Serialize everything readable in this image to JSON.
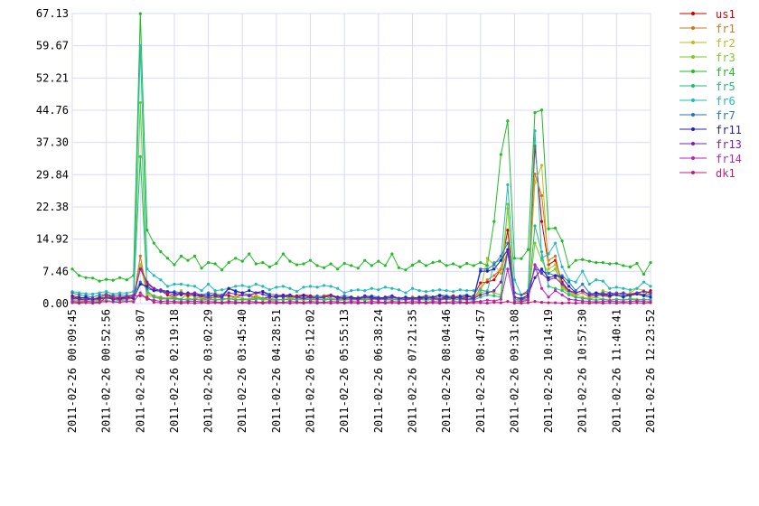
{
  "chart_data": {
    "type": "line",
    "categories": [
      "2011-02-26 00:09:45",
      null,
      null,
      null,
      null,
      "2011-02-26 00:52:56",
      null,
      null,
      null,
      null,
      "2011-02-26 01:36:07",
      null,
      null,
      null,
      null,
      "2011-02-26 02:19:18",
      null,
      null,
      null,
      null,
      "2011-02-26 03:02:29",
      null,
      null,
      null,
      null,
      "2011-02-26 03:45:40",
      null,
      null,
      null,
      null,
      "2011-02-26 04:28:51",
      null,
      null,
      null,
      null,
      "2011-02-26 05:12:02",
      null,
      null,
      null,
      null,
      "2011-02-26 05:55:13",
      null,
      null,
      null,
      null,
      "2011-02-26 06:38:24",
      null,
      null,
      null,
      null,
      "2011-02-26 07:21:35",
      null,
      null,
      null,
      null,
      "2011-02-26 08:04:46",
      null,
      null,
      null,
      null,
      "2011-02-26 08:47:57",
      null,
      null,
      null,
      null,
      "2011-02-26 09:31:08",
      null,
      null,
      null,
      null,
      "2011-02-26 10:14:19",
      null,
      null,
      null,
      null,
      "2011-02-26 10:57:30",
      null,
      null,
      null,
      null,
      "2011-02-26 11:40:41",
      null,
      null,
      null,
      null,
      "2011-02-26 12:23:52"
    ],
    "ylim": [
      0,
      67.13
    ],
    "yticks": [
      {
        "value": 0,
        "label": "0.00"
      },
      {
        "value": 7.46,
        "label": "7.46"
      },
      {
        "value": 14.92,
        "label": "14.92"
      },
      {
        "value": 22.38,
        "label": "22.38"
      },
      {
        "value": 29.84,
        "label": "29.84"
      },
      {
        "value": 37.3,
        "label": "37.30"
      },
      {
        "value": 44.76,
        "label": "44.76"
      },
      {
        "value": 52.21,
        "label": "52.21"
      },
      {
        "value": 59.67,
        "label": "59.67"
      },
      {
        "value": 67.13,
        "label": "67.13"
      }
    ],
    "grid": true,
    "legend": "right",
    "series": [
      {
        "name": "us1",
        "color": "#cc0000",
        "values": [
          1.8,
          1.5,
          1.2,
          1.0,
          1.5,
          2.0,
          1.5,
          1.3,
          1.5,
          1.8,
          9.0,
          4.5,
          3.5,
          3.0,
          2.0,
          1.5,
          2.5,
          1.8,
          2.0,
          1.5,
          1.2,
          1.5,
          2.0,
          1.8,
          1.5,
          2.0,
          1.8,
          1.5,
          1.2,
          1.5,
          1.8,
          2.0,
          1.5,
          1.8,
          2.0,
          1.8,
          1.5,
          1.8,
          2.0,
          1.5,
          1.2,
          1.5,
          1.2,
          1.0,
          1.5,
          1.2,
          1.0,
          1.5,
          1.2,
          1.0,
          1.5,
          1.2,
          1.8,
          1.5,
          1.2,
          1.5,
          1.8,
          1.2,
          1.5,
          1.8,
          4.8,
          5.0,
          5.5,
          8.0,
          17.0,
          2.5,
          2.0,
          2.5,
          36.5,
          19.0,
          9.0,
          10.0,
          5.0,
          3.0,
          2.5,
          3.0,
          2.0,
          2.5,
          2.2,
          2.0,
          2.0,
          1.8,
          2.2,
          2.5,
          2.0,
          3.0
        ]
      },
      {
        "name": "fr1",
        "color": "#cc7722",
        "values": [
          1.0,
          1.2,
          0.8,
          1.0,
          1.2,
          1.5,
          1.0,
          1.2,
          1.0,
          1.2,
          11.0,
          2.5,
          1.8,
          1.5,
          1.2,
          1.5,
          1.0,
          2.5,
          1.5,
          1.2,
          1.0,
          1.5,
          1.2,
          1.0,
          1.5,
          1.2,
          1.0,
          1.5,
          1.2,
          1.0,
          1.5,
          1.8,
          1.2,
          1.5,
          1.2,
          1.0,
          1.5,
          1.8,
          1.2,
          1.0,
          1.2,
          1.0,
          1.5,
          1.2,
          1.0,
          1.2,
          1.5,
          1.0,
          1.2,
          1.0,
          1.5,
          1.2,
          1.0,
          1.5,
          1.2,
          1.0,
          1.2,
          1.5,
          1.0,
          1.2,
          3.5,
          5.5,
          6.5,
          8.0,
          12.0,
          1.5,
          1.0,
          2.0,
          30.0,
          25.0,
          10.0,
          11.0,
          4.0,
          3.0,
          2.0,
          2.5,
          1.5,
          2.0,
          1.8,
          1.5,
          2.5,
          2.0,
          1.8,
          2.2,
          3.0,
          2.5
        ]
      },
      {
        "name": "fr2",
        "color": "#bbbb22",
        "values": [
          0.5,
          0.8,
          0.5,
          0.6,
          0.5,
          0.8,
          0.5,
          0.6,
          0.5,
          0.8,
          9.0,
          2.0,
          1.5,
          1.2,
          1.0,
          1.5,
          3.0,
          1.2,
          1.0,
          1.5,
          1.0,
          2.5,
          1.2,
          1.0,
          1.5,
          1.2,
          1.0,
          2.0,
          1.2,
          1.0,
          0.8,
          1.0,
          1.2,
          0.8,
          1.0,
          1.2,
          0.8,
          1.0,
          1.2,
          0.8,
          0.8,
          1.0,
          0.8,
          1.2,
          1.0,
          0.8,
          1.0,
          0.8,
          1.2,
          1.0,
          1.0,
          0.8,
          1.2,
          1.0,
          0.8,
          1.0,
          1.2,
          0.8,
          1.0,
          0.8,
          3.0,
          10.5,
          9.0,
          7.0,
          22.0,
          1.0,
          0.8,
          1.5,
          28.0,
          32.0,
          8.0,
          9.0,
          3.5,
          2.5,
          2.0,
          1.5,
          1.2,
          1.5,
          3.0,
          2.5,
          2.0,
          1.8,
          2.5,
          3.5,
          3.0,
          2.0
        ]
      },
      {
        "name": "fr3",
        "color": "#77cc22",
        "values": [
          0.8,
          0.5,
          0.6,
          0.5,
          0.8,
          0.6,
          0.5,
          0.8,
          0.6,
          0.5,
          46.5,
          2.0,
          1.5,
          1.0,
          1.2,
          1.0,
          0.8,
          1.2,
          1.0,
          0.8,
          0.8,
          1.0,
          0.8,
          1.2,
          1.0,
          0.8,
          1.0,
          1.2,
          0.8,
          1.0,
          1.0,
          0.8,
          1.2,
          1.0,
          0.8,
          1.0,
          0.8,
          1.2,
          1.0,
          0.8,
          0.8,
          1.0,
          0.8,
          1.0,
          0.8,
          1.2,
          1.0,
          0.8,
          1.0,
          0.8,
          1.0,
          0.8,
          1.0,
          0.8,
          1.2,
          1.0,
          0.8,
          1.0,
          0.8,
          1.0,
          2.5,
          3.0,
          2.5,
          2.0,
          23.0,
          1.0,
          0.5,
          1.0,
          14.0,
          10.0,
          7.0,
          8.0,
          4.0,
          2.5,
          1.5,
          1.2,
          1.0,
          1.5,
          1.0,
          0.8,
          1.0,
          0.8,
          1.2,
          1.0,
          0.8,
          1.0
        ]
      },
      {
        "name": "fr4",
        "color": "#22bb22",
        "values": [
          8.0,
          6.5,
          6.0,
          5.9,
          5.2,
          5.6,
          5.4,
          6.0,
          5.5,
          6.5,
          67.1,
          17.0,
          14.0,
          12.0,
          10.5,
          9.0,
          11.0,
          10.0,
          11.0,
          8.2,
          9.5,
          9.2,
          7.8,
          9.5,
          10.5,
          9.8,
          11.5,
          9.2,
          9.5,
          8.5,
          9.3,
          11.5,
          9.8,
          9.0,
          9.2,
          10.0,
          8.8,
          8.3,
          9.2,
          8.0,
          9.3,
          8.8,
          8.2,
          10.0,
          8.8,
          9.8,
          8.8,
          11.5,
          8.3,
          7.8,
          8.9,
          9.8,
          8.8,
          9.5,
          9.8,
          8.8,
          9.2,
          8.5,
          9.3,
          8.8,
          9.5,
          8.8,
          19.0,
          34.5,
          42.3,
          10.5,
          10.4,
          12.5,
          44.2,
          44.8,
          17.3,
          17.5,
          14.5,
          8.5,
          10.0,
          10.2,
          9.8,
          9.5,
          9.5,
          9.2,
          9.3,
          8.8,
          8.5,
          9.3,
          6.8,
          9.5
        ]
      },
      {
        "name": "fr5",
        "color": "#22bb77",
        "values": [
          1.0,
          1.2,
          1.0,
          0.8,
          1.0,
          1.2,
          1.0,
          0.9,
          1.1,
          1.5,
          34.0,
          3.0,
          1.5,
          1.2,
          1.0,
          1.2,
          1.0,
          0.8,
          1.0,
          0.8,
          1.0,
          0.8,
          1.0,
          1.2,
          0.8,
          1.0,
          0.8,
          1.0,
          1.2,
          0.8,
          0.8,
          1.0,
          0.8,
          1.0,
          1.2,
          0.8,
          1.0,
          0.8,
          1.0,
          0.8,
          1.0,
          0.8,
          1.0,
          0.8,
          1.0,
          1.2,
          0.8,
          1.0,
          0.8,
          1.0,
          0.8,
          1.0,
          0.8,
          1.0,
          0.8,
          1.0,
          1.2,
          0.8,
          1.0,
          0.8,
          1.5,
          2.0,
          1.8,
          1.5,
          12.0,
          1.0,
          0.8,
          1.0,
          18.0,
          12.0,
          4.0,
          3.5,
          3.0,
          2.0,
          1.5,
          1.2,
          1.0,
          0.8,
          1.0,
          0.8,
          1.0,
          0.8,
          1.0,
          0.8,
          1.0,
          0.8
        ]
      },
      {
        "name": "fr6",
        "color": "#22bbbb",
        "values": [
          2.8,
          2.5,
          2.3,
          2.2,
          2.5,
          2.8,
          2.2,
          2.5,
          2.4,
          2.8,
          59.7,
          8.0,
          6.5,
          5.5,
          4.0,
          4.5,
          4.5,
          4.2,
          4.0,
          3.0,
          4.5,
          3.0,
          3.2,
          3.5,
          4.0,
          4.2,
          3.8,
          4.5,
          4.0,
          3.2,
          3.8,
          4.0,
          3.5,
          2.8,
          3.8,
          4.0,
          3.8,
          4.2,
          4.0,
          3.5,
          2.5,
          3.0,
          3.2,
          3.0,
          3.5,
          3.2,
          3.8,
          3.5,
          3.2,
          2.5,
          3.5,
          3.0,
          2.8,
          3.0,
          3.2,
          3.0,
          2.8,
          3.2,
          3.0,
          3.0,
          3.2,
          2.8,
          9.5,
          10.0,
          27.5,
          5.5,
          2.0,
          3.0,
          40.0,
          10.5,
          11.5,
          14.0,
          8.5,
          5.5,
          5.0,
          7.5,
          4.5,
          5.5,
          5.2,
          3.5,
          3.8,
          3.5,
          3.2,
          3.5,
          5.0,
          4.0
        ]
      },
      {
        "name": "fr7",
        "color": "#2277bb",
        "values": [
          2.5,
          2.0,
          1.8,
          1.5,
          2.0,
          2.2,
          1.8,
          2.0,
          1.8,
          2.0,
          5.0,
          3.5,
          3.0,
          2.8,
          2.5,
          2.8,
          2.5,
          2.2,
          2.5,
          2.0,
          2.5,
          2.2,
          2.0,
          3.5,
          3.0,
          2.5,
          2.0,
          2.5,
          2.8,
          2.2,
          2.0,
          1.8,
          2.0,
          1.5,
          1.8,
          1.5,
          1.8,
          1.5,
          1.8,
          1.5,
          1.8,
          1.5,
          1.2,
          1.5,
          1.8,
          1.5,
          1.2,
          1.5,
          1.2,
          1.5,
          1.2,
          1.5,
          1.8,
          1.5,
          2.0,
          1.8,
          1.5,
          1.8,
          2.0,
          1.5,
          8.0,
          8.0,
          9.0,
          11.0,
          14.0,
          2.5,
          2.0,
          3.0,
          8.0,
          7.5,
          7.0,
          6.5,
          6.5,
          5.0,
          3.0,
          4.5,
          2.5,
          2.0,
          2.5,
          2.0,
          2.5,
          2.0,
          1.8,
          2.5,
          2.0,
          2.0
        ]
      },
      {
        "name": "fr11",
        "color": "#2222bb",
        "values": [
          1.5,
          1.2,
          1.5,
          1.0,
          1.2,
          1.5,
          1.0,
          1.2,
          1.5,
          1.2,
          4.5,
          4.0,
          3.0,
          3.2,
          2.8,
          2.5,
          2.0,
          2.5,
          2.0,
          1.8,
          2.0,
          1.8,
          1.5,
          3.5,
          2.8,
          2.5,
          3.0,
          2.5,
          2.8,
          1.8,
          1.5,
          1.8,
          2.0,
          1.5,
          1.8,
          1.5,
          1.2,
          1.5,
          1.8,
          1.5,
          1.2,
          1.5,
          1.2,
          1.8,
          1.5,
          1.2,
          1.5,
          1.8,
          1.2,
          1.5,
          1.2,
          1.5,
          1.2,
          1.5,
          1.8,
          1.5,
          1.2,
          1.5,
          1.8,
          1.2,
          7.5,
          7.5,
          8.0,
          10.0,
          12.5,
          1.5,
          1.2,
          2.0,
          6.0,
          8.0,
          6.0,
          6.5,
          6.0,
          4.0,
          2.5,
          3.0,
          2.0,
          2.5,
          2.0,
          1.8,
          2.0,
          1.5,
          2.0,
          2.2,
          1.8,
          1.5
        ]
      },
      {
        "name": "fr13",
        "color": "#7722bb",
        "values": [
          1.2,
          1.0,
          0.8,
          1.2,
          1.0,
          1.5,
          1.2,
          1.0,
          1.2,
          1.5,
          8.0,
          5.0,
          3.5,
          3.0,
          2.5,
          2.0,
          2.5,
          2.2,
          2.5,
          1.8,
          1.5,
          2.0,
          1.5,
          2.5,
          2.2,
          2.0,
          1.8,
          2.5,
          2.2,
          1.5,
          1.8,
          1.5,
          1.8,
          1.5,
          1.2,
          1.5,
          1.2,
          1.5,
          1.8,
          1.2,
          1.5,
          1.2,
          1.0,
          1.5,
          1.2,
          1.0,
          1.2,
          1.5,
          1.2,
          1.0,
          1.2,
          1.0,
          1.5,
          1.2,
          1.0,
          1.2,
          1.5,
          1.2,
          1.0,
          1.2,
          2.0,
          2.5,
          3.0,
          5.0,
          12.0,
          1.5,
          1.0,
          1.5,
          9.0,
          7.0,
          5.5,
          6.0,
          4.5,
          3.0,
          2.5,
          3.0,
          2.0,
          1.8,
          2.0,
          2.5,
          2.2,
          2.5,
          2.0,
          2.5,
          2.8,
          2.5
        ]
      },
      {
        "name": "fr14",
        "color": "#bb22bb",
        "values": [
          0.5,
          0.3,
          0.5,
          0.4,
          0.3,
          0.5,
          0.4,
          0.3,
          0.5,
          0.4,
          2.5,
          1.0,
          0.8,
          0.5,
          0.6,
          0.5,
          0.4,
          0.5,
          0.6,
          0.4,
          0.5,
          0.4,
          0.3,
          0.5,
          0.4,
          0.3,
          0.5,
          0.4,
          0.3,
          0.5,
          0.4,
          0.3,
          0.5,
          0.4,
          0.3,
          0.5,
          0.4,
          0.3,
          0.5,
          0.4,
          0.3,
          0.5,
          0.4,
          0.3,
          0.5,
          0.4,
          0.3,
          0.5,
          0.4,
          0.3,
          0.5,
          0.4,
          0.3,
          0.5,
          0.4,
          0.3,
          0.5,
          0.4,
          0.3,
          0.5,
          0.5,
          0.8,
          0.6,
          1.0,
          8.0,
          0.5,
          0.4,
          0.8,
          9.0,
          3.5,
          1.5,
          3.0,
          2.0,
          1.0,
          0.8,
          0.6,
          0.5,
          0.4,
          0.5,
          0.6,
          0.5,
          0.4,
          0.5,
          0.6,
          0.5,
          0.4
        ]
      },
      {
        "name": "dk1",
        "color": "#bb2277",
        "values": [
          0.2,
          0.1,
          0.2,
          0.1,
          0.2,
          1.5,
          1.5,
          1.5,
          1.6,
          1.8,
          1.8,
          1.5,
          0.3,
          0.2,
          0.1,
          0.2,
          0.1,
          0.2,
          0.1,
          0.2,
          0.1,
          0.2,
          0.1,
          0.2,
          0.1,
          0.2,
          0.1,
          0.2,
          0.1,
          0.2,
          0.1,
          0.2,
          0.1,
          0.2,
          0.1,
          0.2,
          0.1,
          0.2,
          0.1,
          0.2,
          0.1,
          0.2,
          0.1,
          0.2,
          0.1,
          0.2,
          0.1,
          0.2,
          0.1,
          0.2,
          0.1,
          0.2,
          0.1,
          0.2,
          0.1,
          0.2,
          0.1,
          0.2,
          0.1,
          0.2,
          0.2,
          0.1,
          0.3,
          0.2,
          0.5,
          0.1,
          0.1,
          0.2,
          0.5,
          0.3,
          0.2,
          0.2,
          0.1,
          0.2,
          0.1,
          0.2,
          0.1,
          0.2,
          0.1,
          0.2,
          0.1,
          0.2,
          0.1,
          0.2,
          0.1,
          0.2
        ]
      }
    ]
  }
}
